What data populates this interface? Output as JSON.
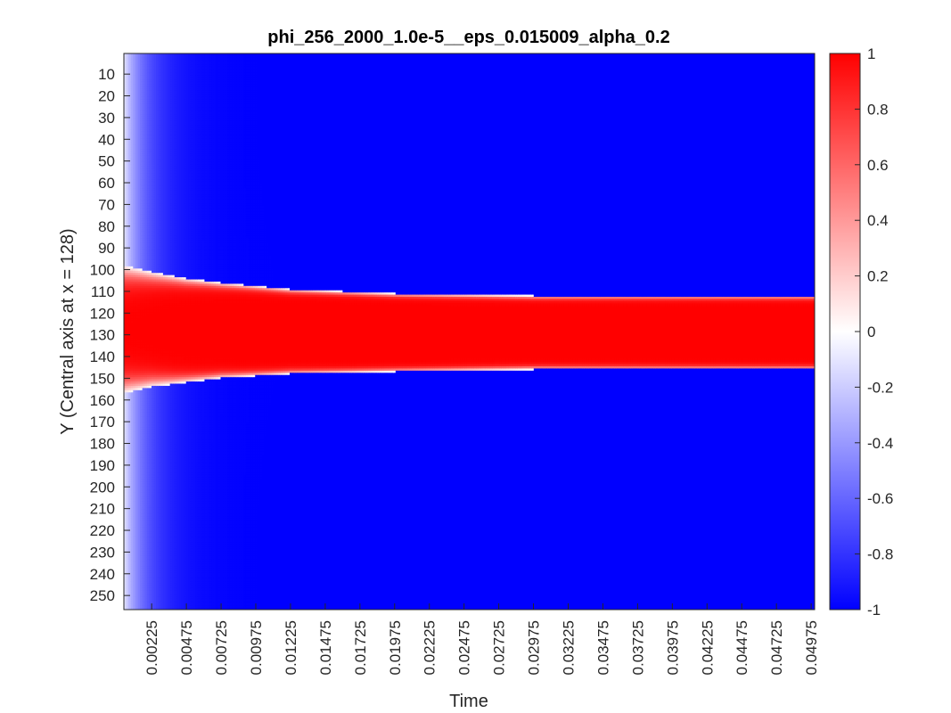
{
  "chart_data": {
    "type": "heatmap",
    "title": "phi_256_2000_1.0e-5__eps_0.015009_alpha_0.2",
    "xlabel": "Time",
    "ylabel": "Y (Central axis at x = 128)",
    "x_range": [
      0.00025,
      0.05
    ],
    "y_range": [
      1,
      256
    ],
    "y_reversed": true,
    "x_ticks": [
      "0.00225",
      "0.00475",
      "0.00725",
      "0.00975",
      "0.01225",
      "0.01475",
      "0.01725",
      "0.01975",
      "0.02225",
      "0.02475",
      "0.02725",
      "0.02975",
      "0.03225",
      "0.03475",
      "0.03725",
      "0.03975",
      "0.04225",
      "0.04475",
      "0.04725",
      "0.04975"
    ],
    "y_ticks": [
      "10",
      "20",
      "30",
      "40",
      "50",
      "60",
      "70",
      "80",
      "90",
      "100",
      "110",
      "120",
      "130",
      "140",
      "150",
      "160",
      "170",
      "180",
      "190",
      "200",
      "210",
      "220",
      "230",
      "240",
      "250"
    ],
    "colorbar": {
      "min": -1,
      "max": 1,
      "ticks": [
        "1",
        "0.8",
        "0.6",
        "0.4",
        "0.2",
        "0",
        "-0.2",
        "-0.4",
        "-0.6",
        "-0.8",
        "-1"
      ],
      "colormap": [
        "#0000ff",
        "#ffffff",
        "#ff0000"
      ]
    },
    "grid": false,
    "interface": {
      "description_values": "approximate y-position of the phi=0 interface over time",
      "time": [
        0.00025,
        0.00225,
        0.00475,
        0.00725,
        0.01225,
        0.01975,
        0.02975,
        0.04975
      ],
      "upper_y": [
        98,
        101,
        104,
        106,
        109,
        111,
        112,
        112
      ],
      "lower_y": [
        157,
        154,
        152,
        150,
        148,
        147,
        146,
        146
      ]
    }
  }
}
